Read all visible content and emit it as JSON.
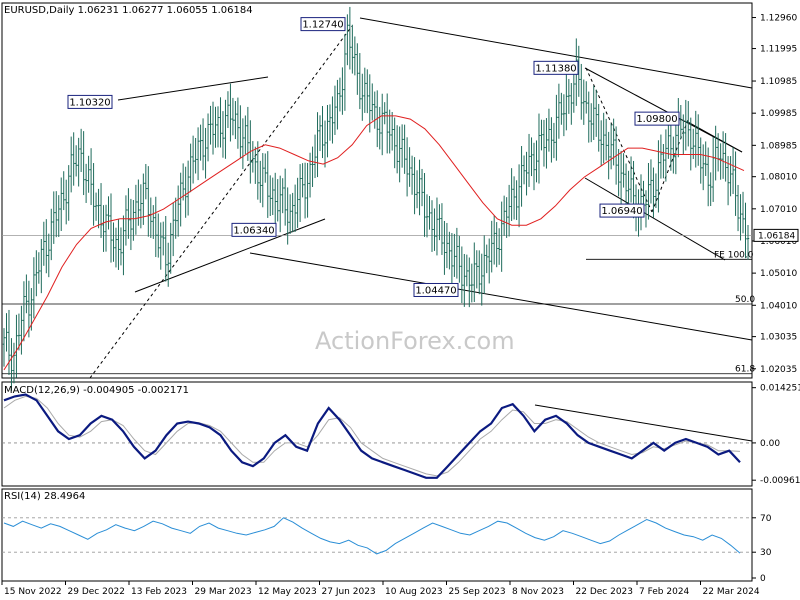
{
  "header": {
    "main": "EURUSD,Daily  1.06231 1.06277 1.06055 1.06184",
    "macd": "MACD(12,26,9) -0.004905 -0.002171",
    "rsi": "RSI(14) 28.4964"
  },
  "watermark": "ActionForex.com",
  "chart_data": {
    "type": "line",
    "price_axis": {
      "ticks": [
        "1.12960",
        "1.11995",
        "1.10985",
        "1.09985",
        "1.08985",
        "1.08010",
        "1.07010",
        "1.06010",
        "1.05010",
        "1.04010",
        "1.03035",
        "1.02035"
      ],
      "values": [
        1.1296,
        1.11995,
        1.10985,
        1.09985,
        1.08985,
        1.0801,
        1.0701,
        1.0601,
        1.0501,
        1.0401,
        1.03035,
        1.02035
      ],
      "range": [
        1.0181,
        1.1335
      ]
    },
    "current_price": {
      "value": 1.06184,
      "label": "1.06184"
    },
    "dates": [
      "15 Nov 2022",
      "29 Dec 2022",
      "13 Feb 2023",
      "29 Mar 2023",
      "12 May 2023",
      "27 Jun 2023",
      "10 Aug 2023",
      "25 Sep 2023",
      "8 Nov 2023",
      "22 Dec 2023",
      "7 Feb 2024",
      "22 Mar 2024"
    ],
    "close_series": [
      1.028,
      1.024,
      1.038,
      1.045,
      1.056,
      1.064,
      1.072,
      1.082,
      1.088,
      1.076,
      1.069,
      1.063,
      1.058,
      1.066,
      1.072,
      1.074,
      1.061,
      1.055,
      1.068,
      1.079,
      1.086,
      1.092,
      1.095,
      1.097,
      1.099,
      1.093,
      1.086,
      1.079,
      1.075,
      1.072,
      1.069,
      1.074,
      1.081,
      1.092,
      1.096,
      1.102,
      1.124,
      1.112,
      1.104,
      1.099,
      1.096,
      1.091,
      1.085,
      1.079,
      1.071,
      1.065,
      1.061,
      1.055,
      1.051,
      1.047,
      1.052,
      1.056,
      1.063,
      1.071,
      1.078,
      1.084,
      1.089,
      1.092,
      1.097,
      1.104,
      1.111,
      1.102,
      1.096,
      1.091,
      1.086,
      1.079,
      1.073,
      1.071,
      1.077,
      1.086,
      1.091,
      1.095,
      1.094,
      1.085,
      1.08,
      1.088,
      1.082,
      1.07,
      1.062
    ],
    "ma_series": [
      1.02,
      1.027,
      1.035,
      1.043,
      1.052,
      1.059,
      1.064,
      1.066,
      1.067,
      1.067,
      1.068,
      1.07,
      1.073,
      1.076,
      1.079,
      1.082,
      1.085,
      1.088,
      1.09,
      1.089,
      1.087,
      1.085,
      1.084,
      1.086,
      1.09,
      1.096,
      1.099,
      1.099,
      1.098,
      1.095,
      1.09,
      1.084,
      1.078,
      1.072,
      1.067,
      1.065,
      1.065,
      1.067,
      1.071,
      1.076,
      1.08,
      1.083,
      1.086,
      1.089,
      1.089,
      1.088,
      1.087,
      1.087,
      1.087,
      1.086,
      1.084,
      1.082
    ],
    "price_labels": [
      {
        "label": "1.12740",
        "value": 1.1274
      },
      {
        "label": "1.10320",
        "value": 1.1032
      },
      {
        "label": "1.11380",
        "value": 1.1138
      },
      {
        "label": "1.09800",
        "value": 1.098
      },
      {
        "label": "1.06340",
        "value": 1.0634
      },
      {
        "label": "1.06940",
        "value": 1.0694
      },
      {
        "label": "1.04470",
        "value": 1.0447
      }
    ],
    "fib_levels": [
      {
        "label": "FE 100.0",
        "value": 1.0544
      },
      {
        "label": "50.0",
        "value": 1.0405
      },
      {
        "label": "61.8",
        "value": 1.0188
      }
    ],
    "macd": {
      "ticks": [
        "0.014251",
        "0.00",
        "-0.009617"
      ],
      "values": [
        0.014251,
        0.0,
        -0.009617
      ],
      "range": [
        -0.0106,
        0.0152
      ],
      "macd_series": [
        0.011,
        0.012,
        0.0125,
        0.011,
        0.007,
        0.003,
        0.001,
        0.002,
        0.005,
        0.007,
        0.006,
        0.003,
        -0.001,
        -0.004,
        -0.002,
        0.002,
        0.005,
        0.0055,
        0.005,
        0.004,
        0.002,
        -0.002,
        -0.005,
        -0.006,
        -0.004,
        0.0,
        0.002,
        -0.001,
        -0.002,
        0.005,
        0.009,
        0.006,
        0.002,
        -0.002,
        -0.004,
        -0.005,
        -0.006,
        -0.007,
        -0.008,
        -0.009,
        -0.009,
        -0.006,
        -0.003,
        0.0,
        0.003,
        0.005,
        0.009,
        0.01,
        0.007,
        0.003,
        0.006,
        0.007,
        0.005,
        0.002,
        0.0,
        -0.001,
        -0.002,
        -0.003,
        -0.004,
        -0.002,
        0.0,
        -0.002,
        0.0,
        0.001,
        0.0,
        -0.001,
        -0.003,
        -0.002,
        -0.005
      ],
      "signal_series": [
        0.009,
        0.011,
        0.012,
        0.0115,
        0.009,
        0.005,
        0.002,
        0.0015,
        0.003,
        0.0055,
        0.006,
        0.0045,
        0.001,
        -0.002,
        -0.003,
        0.0,
        0.003,
        0.005,
        0.0052,
        0.0045,
        0.003,
        0.0,
        -0.003,
        -0.005,
        -0.005,
        -0.002,
        0.0,
        0.0,
        -0.001,
        0.002,
        0.006,
        0.0065,
        0.004,
        0.0,
        -0.002,
        -0.004,
        -0.005,
        -0.006,
        -0.007,
        -0.008,
        -0.0085,
        -0.0075,
        -0.005,
        -0.002,
        0.001,
        0.003,
        0.006,
        0.0085,
        0.008,
        0.005,
        0.005,
        0.006,
        0.0055,
        0.0035,
        0.0015,
        0.0,
        -0.001,
        -0.002,
        -0.003,
        -0.0025,
        -0.001,
        -0.0015,
        -0.0005,
        0.0005,
        0.0,
        -0.0005,
        -0.002,
        -0.002,
        -0.0022
      ]
    },
    "rsi": {
      "ticks": [
        "70",
        "30",
        "0"
      ],
      "values": [
        70,
        30,
        0
      ],
      "range": [
        0,
        100
      ],
      "series": [
        64,
        60,
        66,
        62,
        58,
        63,
        60,
        55,
        50,
        45,
        52,
        56,
        62,
        58,
        55,
        60,
        66,
        63,
        58,
        55,
        52,
        60,
        64,
        58,
        55,
        52,
        50,
        53,
        56,
        60,
        70,
        65,
        58,
        52,
        46,
        42,
        40,
        44,
        38,
        35,
        28,
        32,
        40,
        46,
        52,
        58,
        64,
        60,
        56,
        52,
        50,
        55,
        60,
        66,
        64,
        58,
        52,
        47,
        44,
        48,
        55,
        52,
        48,
        44,
        40,
        43,
        50,
        56,
        62,
        68,
        64,
        58,
        54,
        50,
        48,
        44,
        50,
        46,
        38,
        29
      ]
    }
  }
}
